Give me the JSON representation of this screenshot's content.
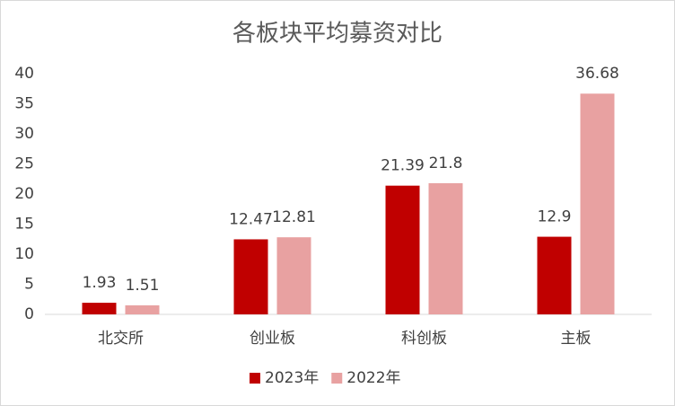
{
  "chart_data": {
    "type": "bar",
    "title": "各板块平均募资对比",
    "categories": [
      "北交所",
      "创业板",
      "科创板",
      "主板"
    ],
    "series": [
      {
        "name": "2023年",
        "color": "#c00000",
        "values": [
          1.93,
          12.47,
          21.39,
          12.9
        ]
      },
      {
        "name": "2022年",
        "color": "#e8a1a1",
        "values": [
          1.51,
          12.81,
          21.8,
          36.68
        ]
      }
    ],
    "ylim": [
      0,
      40
    ],
    "yticks": [
      0,
      5,
      10,
      15,
      20,
      25,
      30,
      35,
      40
    ],
    "grid": false,
    "legend": "bottom"
  }
}
